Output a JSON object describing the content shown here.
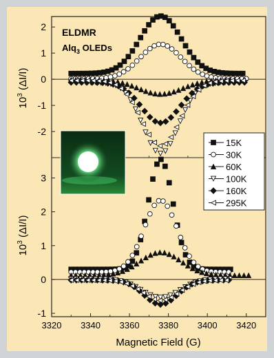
{
  "chart_data": [
    {
      "type": "scatter",
      "panel": "top",
      "annotation_title": "ELDMR",
      "annotation_subtitle_prefix": "Alq",
      "annotation_subtitle_sub": "3",
      "annotation_subtitle_suffix": " OLEDs",
      "annotation_color": "#e04a3c",
      "ylabel_prefix": "10",
      "ylabel_sup": "3",
      "ylabel_suffix": " (ΔI/I)",
      "ylim": [
        -3.0,
        2.4
      ],
      "yticks": [
        "2",
        "1",
        "0",
        "-1",
        "-2"
      ],
      "ytick_values": [
        2,
        1,
        0,
        -1,
        -2
      ],
      "xlim": [
        3320,
        3430
      ],
      "center": 3376,
      "series": [
        {
          "name": "15K",
          "marker": "square-filled",
          "amp": 2.2,
          "base": 0.22,
          "width": 15,
          "x_min": 3330,
          "x_max": 3420
        },
        {
          "name": "30K",
          "marker": "circle-open",
          "amp": 1.32,
          "base": 0.02,
          "width": 15,
          "x_min": 3330,
          "x_max": 3420
        },
        {
          "name": "60K",
          "marker": "triangle-filled",
          "amp": -0.55,
          "base": -0.02,
          "width": 16,
          "x_min": 3330,
          "x_max": 3420
        },
        {
          "name": "100K",
          "marker": "triangle-down-open",
          "amp": -2.72,
          "base": -0.12,
          "width": 13,
          "x_min": 3330,
          "x_max": 3420
        },
        {
          "name": "160K",
          "marker": "diamond-filled",
          "amp": -1.55,
          "base": -0.12,
          "width": 14,
          "x_min": 3330,
          "x_max": 3420
        },
        {
          "name": "295K",
          "marker": "triangle-left-open",
          "amp": -2.5,
          "base": -0.05,
          "width": 14,
          "x_min": 3330,
          "x_max": 3420
        }
      ]
    },
    {
      "type": "scatter",
      "panel": "bottom",
      "ylabel_prefix": "10",
      "ylabel_sup": "3",
      "ylabel_suffix": " (ΔI/I)",
      "xlabel": "Magnetic Field (G)",
      "ylim": [
        -1.1,
        3.6
      ],
      "yticks": [
        "3",
        "2",
        "1",
        "0",
        "-1"
      ],
      "ytick_values": [
        3,
        2,
        1,
        0,
        -1
      ],
      "xlim": [
        3320,
        3430
      ],
      "xticks": [
        "3320",
        "3340",
        "3360",
        "3380",
        "3400",
        "3420"
      ],
      "xtick_values": [
        3320,
        3340,
        3360,
        3380,
        3400,
        3420
      ],
      "center": 3376,
      "series": [
        {
          "name": "15K",
          "marker": "square-filled",
          "amp": 3.25,
          "base": 0.3,
          "width": 9,
          "x_min": 3330,
          "x_max": 3412
        },
        {
          "name": "30K",
          "marker": "circle-open",
          "amp": 2.12,
          "base": 0.22,
          "width": 12,
          "x_min": 3330,
          "x_max": 3412
        },
        {
          "name": "60K",
          "marker": "triangle-filled",
          "amp": 0.68,
          "base": 0.12,
          "width": 15,
          "x_min": 3330,
          "x_max": 3422
        },
        {
          "name": "100K",
          "marker": "triangle-down-open",
          "amp": -0.55,
          "base": 0.02,
          "width": 14,
          "x_min": 3330,
          "x_max": 3412
        },
        {
          "name": "160K",
          "marker": "diamond-filled",
          "amp": -0.72,
          "base": -0.02,
          "width": 12,
          "x_min": 3330,
          "x_max": 3412
        },
        {
          "name": "295K",
          "marker": "triangle-left-open",
          "amp": -0.6,
          "base": -0.02,
          "width": 13,
          "x_min": 3330,
          "x_max": 3412
        }
      ]
    }
  ],
  "legend": {
    "placement": "center-right",
    "entries": [
      "15K",
      "30K",
      "60K",
      "100K",
      "160K",
      "295K"
    ]
  },
  "inset_photo": {
    "glow_color": "#2fd05a",
    "background": "#0c3a18"
  }
}
